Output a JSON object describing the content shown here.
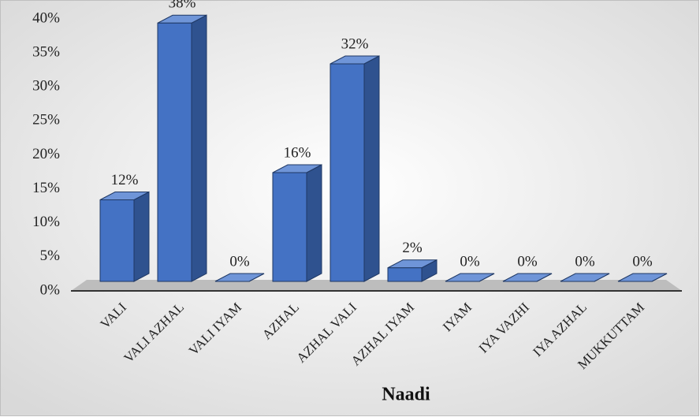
{
  "chart_data": {
    "type": "bar",
    "x_label": "Naadi",
    "categories": [
      "VALI",
      "VALI AZHAL",
      "VALI IYAM",
      "AZHAL",
      "AZHAL VALI",
      "AZHAL IYAM",
      "IYAM",
      "IYA VAZHI",
      "IYA AZHAL",
      "MUKKUTTAM"
    ],
    "values": [
      12,
      38,
      0,
      16,
      32,
      2,
      0,
      0,
      0,
      0
    ],
    "value_labels": [
      "12%",
      "38%",
      "0%",
      "16%",
      "32%",
      "2%",
      "0%",
      "0%",
      "0%",
      "0%"
    ],
    "color": "#4472c4",
    "ylim": [
      0,
      40
    ],
    "yticks": [
      {
        "value": 0,
        "label": "0%"
      },
      {
        "value": 5,
        "label": "5%"
      },
      {
        "value": 10,
        "label": "10%"
      },
      {
        "value": 15,
        "label": "15%"
      },
      {
        "value": 20,
        "label": "20%"
      },
      {
        "value": 25,
        "label": "25%"
      },
      {
        "value": 30,
        "label": "30%"
      },
      {
        "value": 35,
        "label": "35%"
      },
      {
        "value": 40,
        "label": "40%"
      }
    ],
    "grid": false
  }
}
